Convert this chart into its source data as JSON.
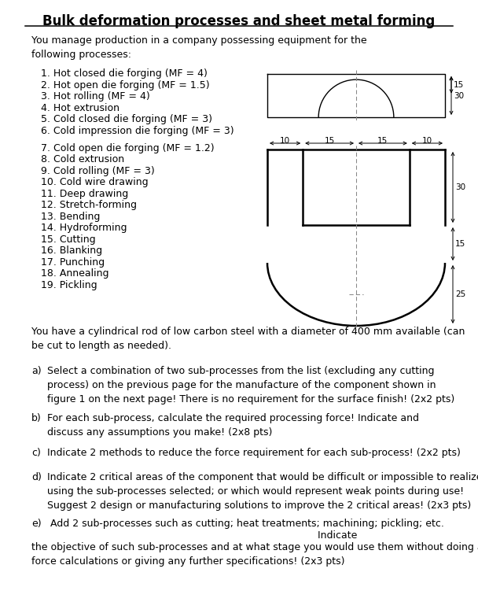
{
  "title": "Bulk deformation processes and sheet metal forming",
  "intro": "You manage production in a company possessing equipment for the\nfollowing processes:",
  "processes": [
    "1. Hot closed die forging (MF = 4)",
    "2. Hot open die forging (MF = 1.5)",
    "3. Hot rolling (MF = 4)",
    "4. Hot extrusion",
    "5. Cold closed die forging (MF = 3)",
    "6. Cold impression die forging (MF = 3)",
    "",
    "7. Cold open die forging (MF = 1.2)",
    "8. Cold extrusion",
    "9. Cold rolling (MF = 3)",
    "10. Cold wire drawing",
    "11. Deep drawing",
    "12. Stretch-forming",
    "13. Bending",
    "14. Hydroforming",
    "15. Cutting",
    "16. Blanking",
    "17. Punching",
    "18. Annealing",
    "19. Pickling"
  ],
  "rod_text": "You have a cylindrical rod of low carbon steel with a diameter of 400 mm available (can\nbe cut to length as needed).",
  "questions": [
    {
      "label": "a)",
      "text": "Select a combination of two sub-processes from the list (excluding any cutting\nprocess) on the previous page for the manufacture of the component shown in\nfigure 1 on the next page! There is no requirement for the surface finish! (2x2 pts)",
      "indent": 20
    },
    {
      "label": "b)",
      "text": "For each sub-process, calculate the required processing force! Indicate and\ndiscuss any assumptions you make! (2x8 pts)",
      "indent": 20
    },
    {
      "label": "c)",
      "text": "Indicate 2 methods to reduce the force requirement for each sub-process! (2x2 pts)",
      "indent": 20
    },
    {
      "label": "d)",
      "text": "Indicate 2 critical areas of the component that would be difficult or impossible to realize\nusing the sub-processes selected; or which would represent weak points during use!\nSuggest 2 design or manufacturing solutions to improve the 2 critical areas! (2x3 pts)",
      "indent": 20
    },
    {
      "label": "e)",
      "text_line1": "      Add 2 sub-processes such as cutting; heat treatments; machining; pickling; etc.",
      "text_line2": "                                                                                           Indicate",
      "text_line3": "the objective of such sub-processes and at what stage you would use them without doing any\nforce calculations or giving any further specifications! (2x3 pts)",
      "indent": 0
    }
  ],
  "fs_title": 12.0,
  "fs_body": 9.0,
  "fs_dim": 7.5
}
